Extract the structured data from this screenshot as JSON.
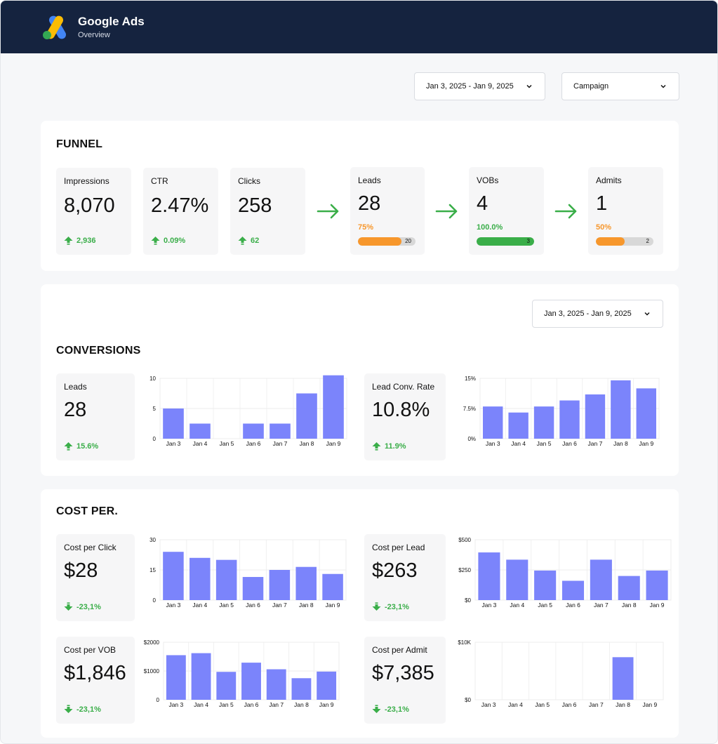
{
  "header": {
    "app_title": "Google Ads",
    "app_subtitle": "Overview",
    "logo_icon": "google-ads-logo"
  },
  "filters": {
    "date_range": "Jan 3, 2025 - Jan 9, 2025",
    "campaign": "Campaign"
  },
  "colors": {
    "header_bg": "#15233f",
    "positive": "#3aae49",
    "orange": "#f7972c",
    "bar": "#7b84fb"
  },
  "funnel": {
    "title": "FUNNEL",
    "metrics": [
      {
        "label": "Impressions",
        "value": "8,070",
        "delta": "2,936",
        "delta_icon": "arrow-up-icon"
      },
      {
        "label": "CTR",
        "value": "2.47%",
        "delta": "0.09%",
        "delta_icon": "arrow-up-icon"
      },
      {
        "label": "Clicks",
        "value": "258",
        "delta": "62",
        "delta_icon": "arrow-up-icon"
      }
    ],
    "stages": [
      {
        "label": "Leads",
        "value": "28",
        "pct": "75%",
        "progress": 0.75,
        "count": "20",
        "color": "#f7972c"
      },
      {
        "label": "VOBs",
        "value": "4",
        "pct": "100.0%",
        "progress": 1.0,
        "count": "3",
        "color": "#3aae49"
      },
      {
        "label": "Admits",
        "value": "1",
        "pct": "50%",
        "progress": 0.5,
        "count": "2",
        "color": "#f7972c"
      }
    ]
  },
  "conversions": {
    "title": "CONVERSIONS",
    "date_range": "Jan 3, 2025 - Jan 9, 2025",
    "tiles": [
      {
        "label": "Leads",
        "value": "28",
        "delta": "15.6%",
        "delta_icon": "arrow-up-icon"
      },
      {
        "label": "Lead Conv. Rate",
        "value": "10.8%",
        "delta": "11.9%",
        "delta_icon": "arrow-up-icon"
      }
    ]
  },
  "cost": {
    "title": "COST PER.",
    "tiles": [
      {
        "label": "Cost per Click",
        "value": "$28",
        "delta": "-23,1%",
        "delta_icon": "arrow-down-icon"
      },
      {
        "label": "Cost per Lead",
        "value": "$263",
        "delta": "-23,1%",
        "delta_icon": "arrow-down-icon"
      },
      {
        "label": "Cost per VOB",
        "value": "$1,846",
        "delta": "-23,1%",
        "delta_icon": "arrow-down-icon"
      },
      {
        "label": "Cost per Admit",
        "value": "$7,385",
        "delta": "-23,1%",
        "delta_icon": "arrow-down-icon"
      }
    ]
  },
  "chart_data": [
    {
      "id": "leads",
      "type": "bar",
      "categories": [
        "Jan 3",
        "Jan 4",
        "Jan 5",
        "Jan 6",
        "Jan 7",
        "Jan 8",
        "Jan 9"
      ],
      "values": [
        5,
        2.5,
        0,
        2.5,
        2.5,
        7.5,
        10.5
      ],
      "ylim": [
        0,
        10
      ],
      "yticks": [
        0,
        5,
        10
      ],
      "ytick_labels": [
        "0",
        "5",
        "10"
      ],
      "grid": true
    },
    {
      "id": "lead-conv-rate",
      "type": "bar",
      "categories": [
        "Jan 3",
        "Jan 4",
        "Jan 5",
        "Jan 6",
        "Jan 7",
        "Jan 8",
        "Jan 9"
      ],
      "values": [
        8,
        6.5,
        8,
        9.5,
        11,
        14.5,
        12.5
      ],
      "ylim": [
        0,
        15
      ],
      "yticks": [
        0,
        7.5,
        15
      ],
      "ytick_labels": [
        "0%",
        "7.5%",
        "15%"
      ],
      "grid": true
    },
    {
      "id": "cost-per-click",
      "type": "bar",
      "categories": [
        "Jan 3",
        "Jan 4",
        "Jan 5",
        "Jan 6",
        "Jan 7",
        "Jan 8",
        "Jan 9"
      ],
      "values": [
        24,
        21,
        20,
        11.5,
        15,
        16.5,
        13
      ],
      "ylim": [
        0,
        30
      ],
      "yticks": [
        0,
        15,
        30
      ],
      "ytick_labels": [
        "0",
        "15",
        "30"
      ],
      "grid": true
    },
    {
      "id": "cost-per-lead",
      "type": "bar",
      "categories": [
        "Jan 3",
        "Jan 4",
        "Jan 5",
        "Jan 6",
        "Jan 7",
        "Jan 8",
        "Jan 9"
      ],
      "values": [
        395,
        335,
        245,
        160,
        335,
        200,
        245
      ],
      "ylim": [
        0,
        500
      ],
      "yticks": [
        0,
        250,
        500
      ],
      "ytick_labels": [
        "$0",
        "$250",
        "$500"
      ],
      "grid": true
    },
    {
      "id": "cost-per-vob",
      "type": "bar",
      "categories": [
        "Jan 3",
        "Jan 4",
        "Jan 5",
        "Jan 6",
        "Jan 7",
        "Jan 8",
        "Jan 9"
      ],
      "values": [
        1550,
        1620,
        970,
        1290,
        1060,
        750,
        980
      ],
      "ylim": [
        0,
        2000
      ],
      "yticks": [
        0,
        1000,
        2000
      ],
      "ytick_labels": [
        "0",
        "$1000",
        "$2000"
      ],
      "grid": true
    },
    {
      "id": "cost-per-admit",
      "type": "bar",
      "categories": [
        "Jan 3",
        "Jan 4",
        "Jan 5",
        "Jan 6",
        "Jan 7",
        "Jan 8",
        "Jan 9"
      ],
      "values": [
        0,
        0,
        0,
        0,
        0,
        7400,
        0
      ],
      "ylim": [
        0,
        10000
      ],
      "yticks": [
        0,
        10000
      ],
      "ytick_labels": [
        "$0",
        "$10K"
      ],
      "grid": true
    }
  ]
}
